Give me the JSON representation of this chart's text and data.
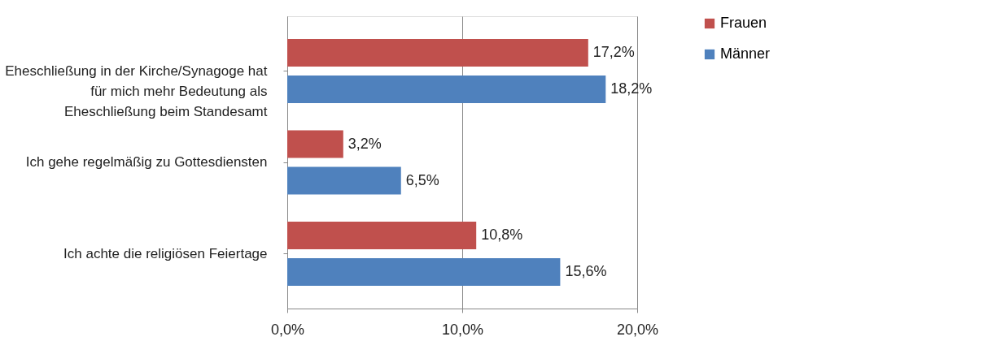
{
  "chart_data": {
    "type": "bar",
    "orientation": "horizontal",
    "categories": [
      "Eheschließung in der Kirche/Synagoge hat\nfür mich mehr Bedeutung als\nEheschließung beim Standesamt",
      "Ich gehe regelmäßig zu Gottesdiensten",
      "Ich achte die religiösen Feiertage"
    ],
    "series": [
      {
        "name": "Frauen",
        "color": "#c0504d",
        "values": [
          17.2,
          3.2,
          10.8
        ],
        "value_labels": [
          "17,2%",
          "3,2%",
          "10,8%"
        ]
      },
      {
        "name": "Männer",
        "color": "#4f81bd",
        "values": [
          18.2,
          6.5,
          15.6
        ],
        "value_labels": [
          "18,2%",
          "6,5%",
          "15,6%"
        ]
      }
    ],
    "xlim": [
      0,
      20
    ],
    "xticks": [
      {
        "value": 0,
        "label": "0,0%"
      },
      {
        "value": 10,
        "label": "10,0%"
      },
      {
        "value": 20,
        "label": "20,0%"
      }
    ],
    "grid": "x",
    "legend": "right"
  }
}
